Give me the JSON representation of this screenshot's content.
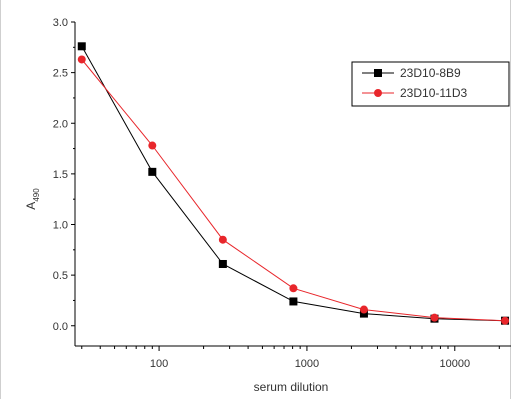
{
  "chart_data": {
    "type": "line",
    "title": "",
    "xlabel": "serum dilution",
    "ylabel": "A",
    "ylabel_subscript": "490",
    "x_scale": "log",
    "xlim": [
      27,
      24000
    ],
    "ylim": [
      -0.2,
      3.0
    ],
    "x_tick_labels": [
      "100",
      "1000",
      "10000"
    ],
    "y_tick_labels": [
      "0.0",
      "0.5",
      "1.0",
      "1.5",
      "2.0",
      "2.5",
      "3.0"
    ],
    "grid": false,
    "legend_position": "top-right",
    "series": [
      {
        "name": "23D10-8B9",
        "color": "#000000",
        "marker": "square",
        "x": [
          30,
          90,
          270,
          810,
          2430,
          7290,
          21870
        ],
        "y": [
          2.76,
          1.52,
          0.61,
          0.24,
          0.12,
          0.07,
          0.05
        ]
      },
      {
        "name": "23D10-11D3",
        "color": "#e8262b",
        "marker": "circle",
        "x": [
          30,
          90,
          270,
          810,
          2430,
          7290,
          21870
        ],
        "y": [
          2.63,
          1.78,
          0.85,
          0.37,
          0.16,
          0.08,
          0.05
        ]
      }
    ]
  }
}
